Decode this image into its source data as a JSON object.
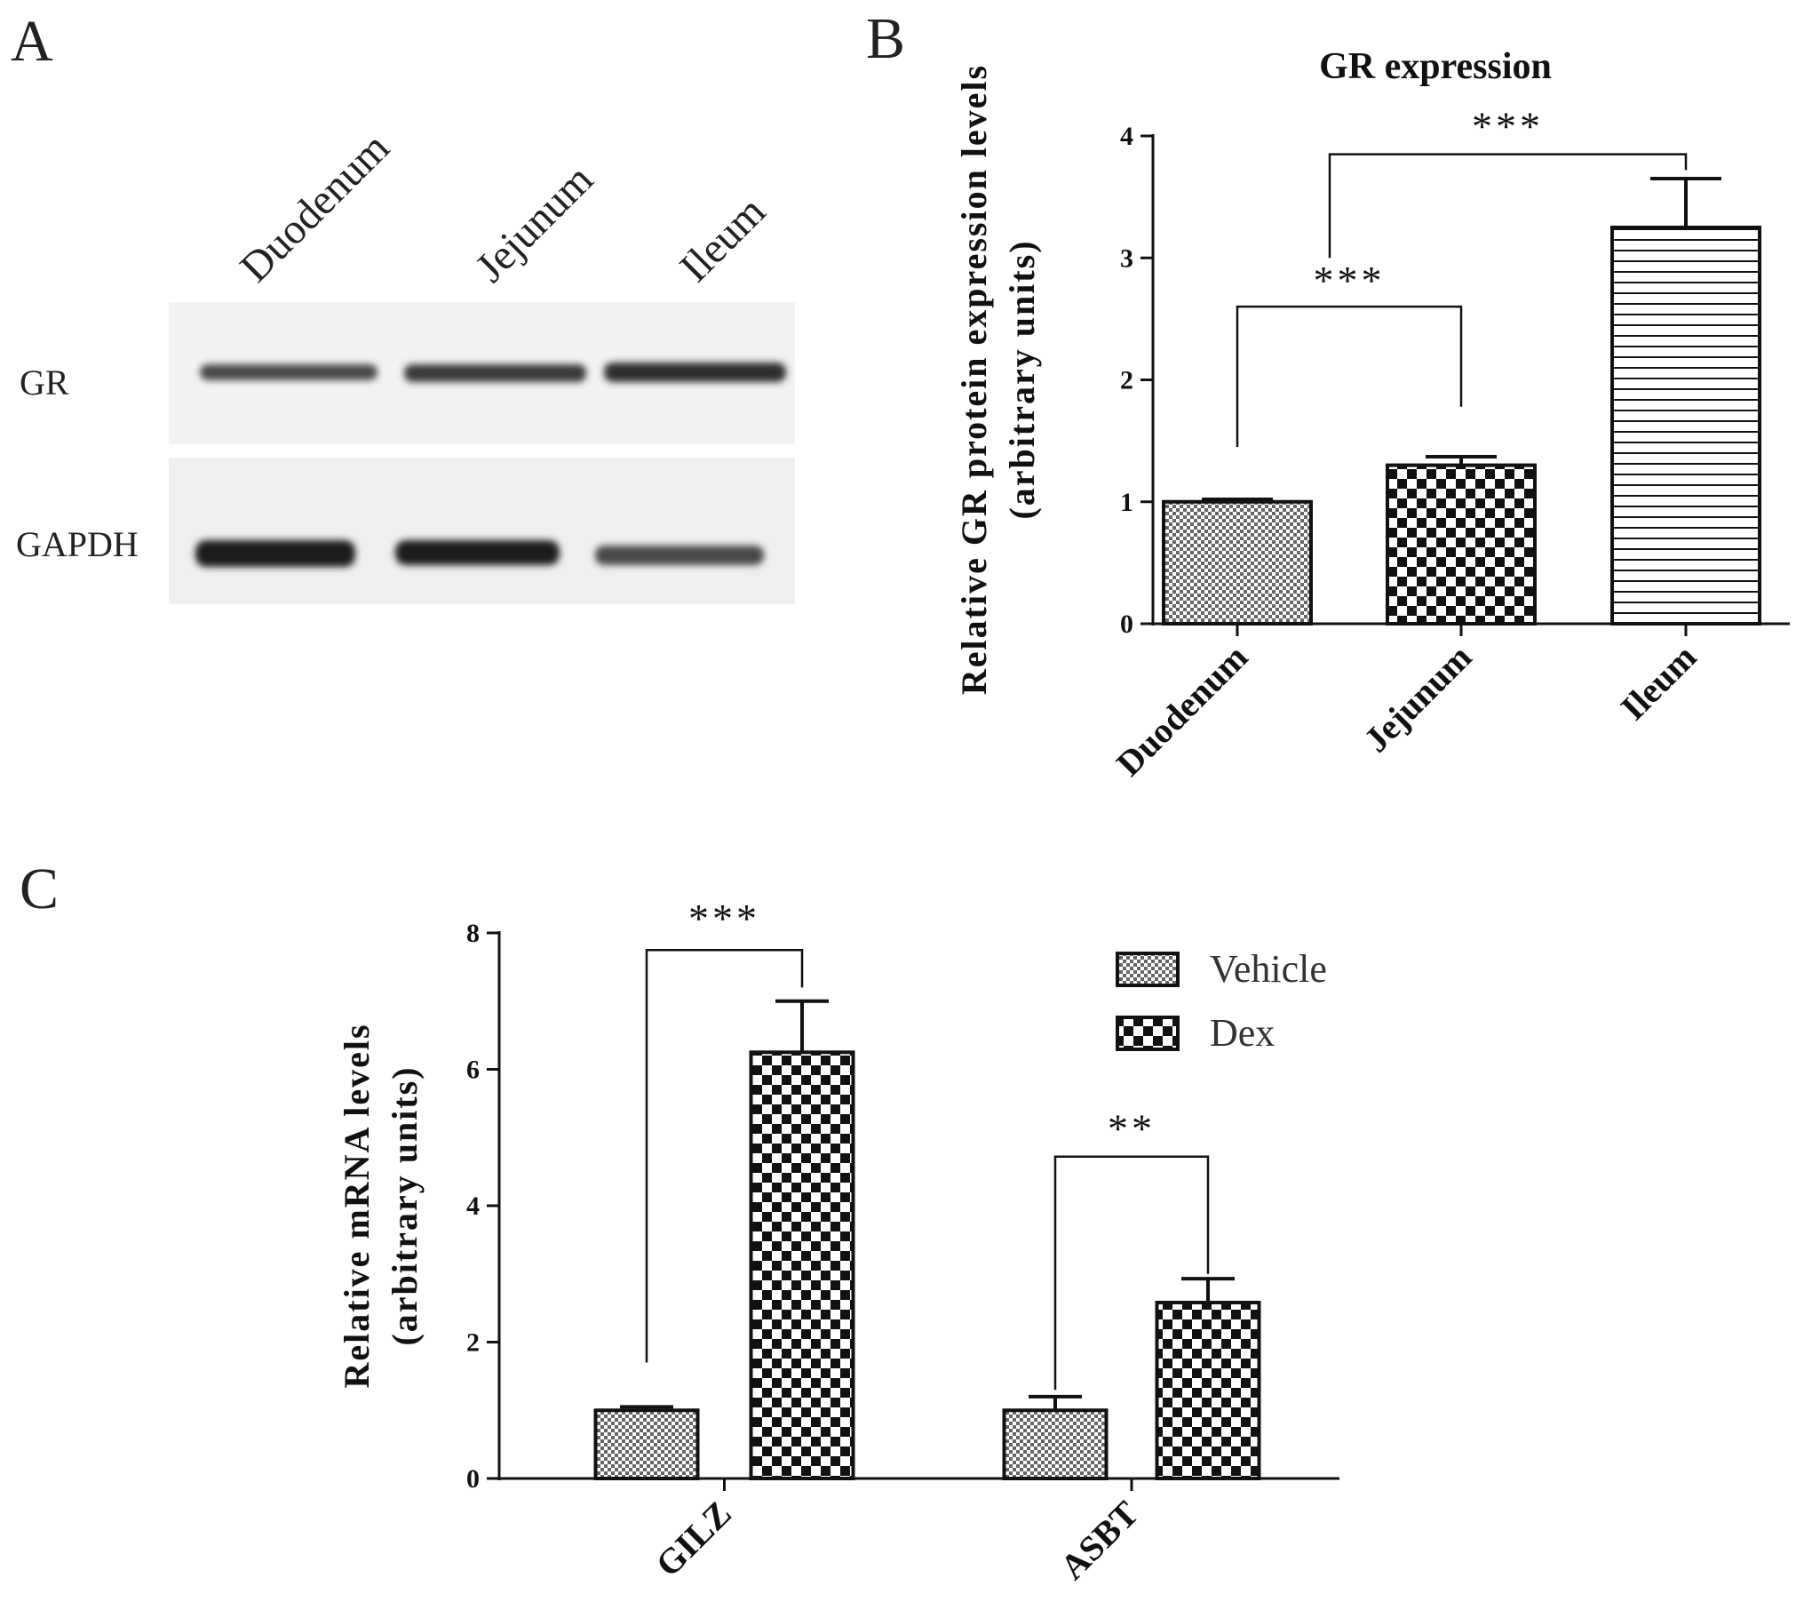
{
  "panels": {
    "a": {
      "letter": "A",
      "lanes": [
        "Duodenum",
        "Jejunum",
        "Ileum"
      ],
      "rows": [
        "GR",
        "GAPDH"
      ]
    },
    "b": {
      "letter": "B"
    },
    "c": {
      "letter": "C"
    }
  },
  "chart_data": [
    {
      "id": "B",
      "type": "bar",
      "title": "GR expression",
      "ylabel_lines": [
        "Relative GR protein expression levels",
        "(arbitrary units)"
      ],
      "xlabel": "",
      "categories": [
        "Duodenum",
        "Jejunum",
        "Ileum"
      ],
      "values": [
        1.0,
        1.3,
        3.25
      ],
      "errors": [
        0.02,
        0.07,
        0.4
      ],
      "patterns": [
        "fine-dots",
        "checker",
        "horizontal-lines"
      ],
      "ylim": [
        0,
        4
      ],
      "yticks": [
        0,
        1,
        2,
        3,
        4
      ],
      "significance": [
        {
          "from": "Duodenum",
          "to": "Jejunum",
          "label": "***"
        },
        {
          "from": "Jejunum",
          "to": "Ileum",
          "label": "***"
        }
      ],
      "grid": false
    },
    {
      "id": "C",
      "type": "bar",
      "title": "",
      "ylabel_lines": [
        "Relative mRNA levels",
        "(arbitrary units)"
      ],
      "xlabel": "",
      "categories": [
        "GILZ",
        "ASBT"
      ],
      "series": [
        {
          "name": "Vehicle",
          "values": [
            1.0,
            1.0
          ],
          "errors": [
            0.05,
            0.2
          ],
          "pattern": "fine-dots"
        },
        {
          "name": "Dex",
          "values": [
            6.25,
            2.58
          ],
          "errors": [
            0.75,
            0.35
          ],
          "pattern": "checker"
        }
      ],
      "ylim": [
        0,
        8
      ],
      "yticks": [
        0,
        2,
        4,
        6,
        8
      ],
      "significance": [
        {
          "category": "GILZ",
          "label": "***"
        },
        {
          "category": "ASBT",
          "label": "**"
        }
      ],
      "legend_position": "top-right",
      "grid": false
    }
  ]
}
